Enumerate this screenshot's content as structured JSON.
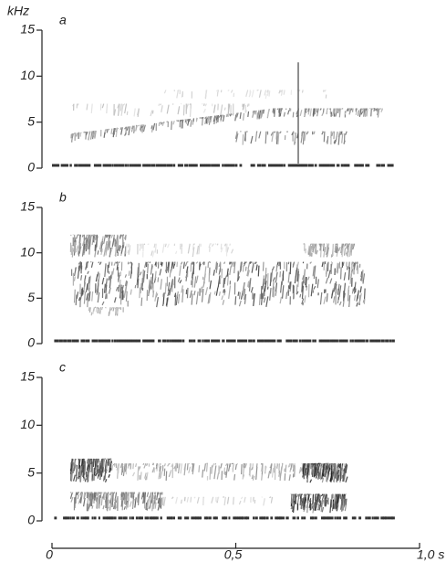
{
  "chart_data": [
    {
      "type": "spectrogram",
      "panel": "a",
      "ylabel": "kHz",
      "ylim": [
        0,
        15
      ],
      "yticks": [
        0,
        5,
        10,
        15
      ]
    },
    {
      "type": "spectrogram",
      "panel": "b",
      "ylim": [
        0,
        15
      ],
      "yticks": [
        0,
        5,
        10,
        15
      ]
    },
    {
      "type": "spectrogram",
      "panel": "c",
      "ylim": [
        0,
        15
      ],
      "yticks": [
        0,
        5,
        10,
        15
      ],
      "xlim": [
        0,
        1.0
      ],
      "xticks": [
        0,
        {
          "value": 0.5,
          "label": "0,5"
        },
        {
          "value": 1.0,
          "label": "1,0 s"
        }
      ]
    }
  ]
}
